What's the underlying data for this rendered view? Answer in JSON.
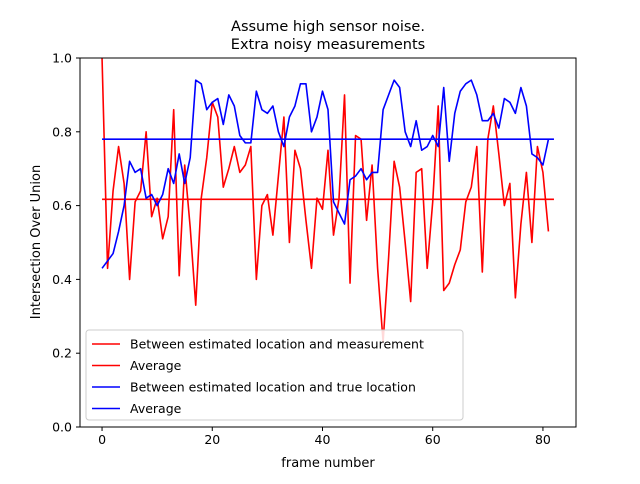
{
  "chart_data": {
    "type": "line",
    "title": "Assume high sensor noise.",
    "subtitle": "Extra noisy measurements",
    "xlabel": "frame number",
    "ylabel": "Intersection Over Union",
    "xlim": [
      -4,
      86
    ],
    "ylim": [
      0.0,
      1.0
    ],
    "xticks": [
      0,
      20,
      40,
      60,
      80
    ],
    "yticks": [
      0.0,
      0.2,
      0.4,
      0.6,
      0.8,
      1.0
    ],
    "xtick_labels": [
      "0",
      "20",
      "40",
      "60",
      "80"
    ],
    "ytick_labels": [
      "0.0",
      "0.2",
      "0.4",
      "0.6",
      "0.8",
      "1.0"
    ],
    "grid": false,
    "legend_position": "lower-left",
    "series": [
      {
        "name": "Between estimated location and measurement",
        "color": "#ff0000",
        "x": [
          0,
          1,
          2,
          3,
          4,
          5,
          6,
          7,
          8,
          9,
          10,
          11,
          12,
          13,
          14,
          15,
          16,
          17,
          18,
          19,
          20,
          21,
          22,
          23,
          24,
          25,
          26,
          27,
          28,
          29,
          30,
          31,
          32,
          33,
          34,
          35,
          36,
          37,
          38,
          39,
          40,
          41,
          42,
          43,
          44,
          45,
          46,
          47,
          48,
          49,
          50,
          51,
          52,
          53,
          54,
          55,
          56,
          57,
          58,
          59,
          60,
          61,
          62,
          63,
          64,
          65,
          66,
          67,
          68,
          69,
          70,
          71,
          72,
          73,
          74,
          75,
          76,
          77,
          78,
          79,
          80,
          81
        ],
        "values": [
          1.0,
          0.43,
          0.64,
          0.76,
          0.66,
          0.4,
          0.61,
          0.64,
          0.8,
          0.57,
          0.62,
          0.51,
          0.57,
          0.86,
          0.41,
          0.71,
          0.54,
          0.33,
          0.62,
          0.73,
          0.88,
          0.84,
          0.65,
          0.7,
          0.76,
          0.69,
          0.71,
          0.76,
          0.4,
          0.6,
          0.63,
          0.52,
          0.68,
          0.84,
          0.5,
          0.75,
          0.7,
          0.56,
          0.43,
          0.62,
          0.59,
          0.75,
          0.52,
          0.62,
          0.9,
          0.39,
          0.79,
          0.78,
          0.56,
          0.71,
          0.43,
          0.23,
          0.46,
          0.72,
          0.65,
          0.5,
          0.34,
          0.69,
          0.7,
          0.43,
          0.61,
          0.87,
          0.37,
          0.39,
          0.44,
          0.48,
          0.61,
          0.65,
          0.76,
          0.42,
          0.78,
          0.87,
          0.74,
          0.6,
          0.66,
          0.35,
          0.55,
          0.69,
          0.5,
          0.76,
          0.69,
          0.53
        ]
      },
      {
        "name": "Average",
        "color": "#ff0000",
        "x": [
          0,
          82
        ],
        "values": [
          0.617,
          0.617
        ]
      },
      {
        "name": "Between estimated location and true location",
        "color": "#0000ff",
        "x": [
          0,
          1,
          2,
          3,
          4,
          5,
          6,
          7,
          8,
          9,
          10,
          11,
          12,
          13,
          14,
          15,
          16,
          17,
          18,
          19,
          20,
          21,
          22,
          23,
          24,
          25,
          26,
          27,
          28,
          29,
          30,
          31,
          32,
          33,
          34,
          35,
          36,
          37,
          38,
          39,
          40,
          41,
          42,
          43,
          44,
          45,
          46,
          47,
          48,
          49,
          50,
          51,
          52,
          53,
          54,
          55,
          56,
          57,
          58,
          59,
          60,
          61,
          62,
          63,
          64,
          65,
          66,
          67,
          68,
          69,
          70,
          71,
          72,
          73,
          74,
          75,
          76,
          77,
          78,
          79,
          80,
          81
        ],
        "values": [
          0.43,
          0.45,
          0.47,
          0.53,
          0.6,
          0.72,
          0.69,
          0.7,
          0.62,
          0.63,
          0.6,
          0.63,
          0.7,
          0.66,
          0.74,
          0.66,
          0.73,
          0.94,
          0.93,
          0.86,
          0.88,
          0.89,
          0.82,
          0.9,
          0.87,
          0.79,
          0.77,
          0.77,
          0.91,
          0.86,
          0.85,
          0.87,
          0.8,
          0.76,
          0.84,
          0.87,
          0.93,
          0.93,
          0.8,
          0.84,
          0.91,
          0.86,
          0.61,
          0.58,
          0.55,
          0.67,
          0.68,
          0.7,
          0.67,
          0.69,
          0.69,
          0.86,
          0.9,
          0.94,
          0.92,
          0.8,
          0.76,
          0.83,
          0.75,
          0.76,
          0.79,
          0.76,
          0.92,
          0.72,
          0.85,
          0.91,
          0.93,
          0.94,
          0.9,
          0.83,
          0.83,
          0.85,
          0.81,
          0.89,
          0.88,
          0.85,
          0.92,
          0.87,
          0.74,
          0.73,
          0.71,
          0.78
        ]
      },
      {
        "name": "Average",
        "color": "#0000ff",
        "x": [
          0,
          82
        ],
        "values": [
          0.78,
          0.78
        ]
      }
    ]
  }
}
